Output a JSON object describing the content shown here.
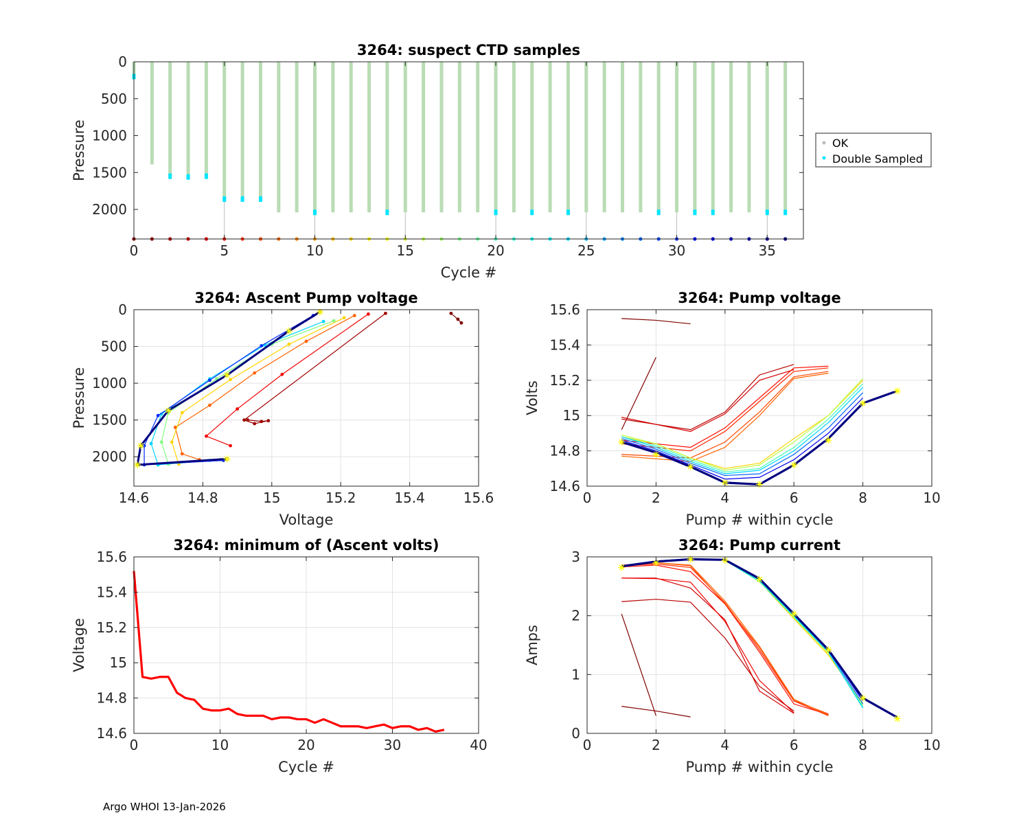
{
  "footer": "Argo WHOI 13-Jan-2026",
  "chart_data": [
    {
      "id": "ctd",
      "type": "scatter",
      "title": "3264: suspect CTD samples",
      "xlabel": "Cycle #",
      "ylabel": "Pressure",
      "xlim": [
        0,
        37
      ],
      "ylim": [
        2400,
        0
      ],
      "xticks": [
        0,
        5,
        10,
        15,
        20,
        25,
        30,
        35
      ],
      "yticks": [
        0,
        500,
        1000,
        1500,
        2000
      ],
      "legend": {
        "position": "right",
        "entries": [
          {
            "label": "OK",
            "color": "#bbbbbb"
          },
          {
            "label": "Double Sampled",
            "color": "#00e5ff"
          }
        ]
      },
      "ok_color": "#b9dcb4",
      "double_color": "#00e5ff",
      "cycles": [
        0,
        1,
        2,
        3,
        4,
        5,
        6,
        7,
        8,
        9,
        10,
        11,
        12,
        13,
        14,
        15,
        16,
        17,
        18,
        19,
        20,
        21,
        22,
        23,
        24,
        25,
        26,
        27,
        28,
        29,
        30,
        31,
        32,
        33,
        34,
        35,
        36
      ],
      "max_pressure": [
        200,
        1390,
        1550,
        1560,
        1550,
        1860,
        1860,
        1860,
        2040,
        2040,
        2040,
        2040,
        2040,
        2040,
        2040,
        2040,
        2040,
        2040,
        2040,
        2040,
        2040,
        2040,
        2040,
        2040,
        2040,
        2040,
        2040,
        2040,
        2040,
        2040,
        2040,
        2040,
        2040,
        2040,
        2040,
        2040,
        2040
      ],
      "double_sampled": [
        [
          0,
          200
        ],
        [
          2,
          1550
        ],
        [
          3,
          1560
        ],
        [
          4,
          1550
        ],
        [
          5,
          1860
        ],
        [
          6,
          1860
        ],
        [
          7,
          1860
        ],
        [
          10,
          2040
        ],
        [
          14,
          2040
        ],
        [
          20,
          2040
        ],
        [
          22,
          2040
        ],
        [
          24,
          2040
        ],
        [
          29,
          2040
        ],
        [
          31,
          2040
        ],
        [
          32,
          2040
        ],
        [
          35,
          2040
        ],
        [
          36,
          2040
        ]
      ]
    },
    {
      "id": "ascent",
      "type": "line",
      "title": "3264: Ascent Pump voltage",
      "xlabel": "Voltage",
      "ylabel": "Pressure",
      "xlim": [
        14.6,
        15.6
      ],
      "ylim": [
        2400,
        0
      ],
      "xticks": [
        14.6,
        14.8,
        15,
        15.2,
        15.4,
        15.6
      ],
      "yticks": [
        0,
        500,
        1000,
        1500,
        2000
      ],
      "series": [
        {
          "cycle": 0,
          "voltage": [
            15.52,
            15.54,
            15.55
          ],
          "pressure": [
            50,
            130,
            180
          ]
        },
        {
          "cycle": 1,
          "voltage": [
            14.93,
            14.97,
            14.99,
            14.95,
            14.92,
            15.33
          ],
          "pressure": [
            1500,
            1520,
            1510,
            1550,
            1500,
            50
          ]
        },
        {
          "cycle": 4,
          "voltage": [
            14.88,
            14.81,
            14.9,
            15.03,
            15.28
          ],
          "pressure": [
            1850,
            1720,
            1350,
            880,
            60
          ]
        },
        {
          "cycle": 8,
          "voltage": [
            14.79,
            14.74,
            14.72,
            14.82,
            14.95,
            15.1,
            15.24
          ],
          "pressure": [
            2040,
            1960,
            1600,
            1300,
            860,
            430,
            80
          ]
        },
        {
          "cycle": 12,
          "voltage": [
            14.73,
            14.71,
            14.74,
            14.88,
            15.05,
            15.21
          ],
          "pressure": [
            2100,
            1800,
            1400,
            950,
            470,
            110
          ]
        },
        {
          "cycle": 18,
          "voltage": [
            14.85,
            14.7,
            14.68,
            14.7,
            14.84,
            15.0,
            15.18
          ],
          "pressure": [
            2040,
            2100,
            1800,
            1400,
            940,
            470,
            150
          ]
        },
        {
          "cycle": 24,
          "voltage": [
            14.82,
            14.67,
            14.65,
            14.68,
            14.82,
            14.98,
            15.15
          ],
          "pressure": [
            2050,
            2110,
            1820,
            1420,
            940,
            480,
            160
          ]
        },
        {
          "cycle": 30,
          "voltage": [
            14.86,
            14.63,
            14.63,
            14.67,
            14.82,
            14.97,
            15.12
          ],
          "pressure": [
            2050,
            2110,
            1850,
            1440,
            960,
            490,
            80
          ]
        },
        {
          "cycle": 36,
          "voltage": [
            14.87,
            14.61,
            14.62,
            14.7,
            14.87,
            15.05,
            15.14
          ],
          "pressure": [
            2030,
            2110,
            1850,
            1370,
            890,
            290,
            30
          ]
        }
      ]
    },
    {
      "id": "pumpv",
      "type": "line",
      "title": "3264: Pump voltage",
      "xlabel": "Pump # within cycle",
      "ylabel": "Volts",
      "xlim": [
        0,
        10
      ],
      "ylim": [
        14.6,
        15.6
      ],
      "xticks": [
        0,
        2,
        4,
        6,
        8,
        10
      ],
      "yticks": [
        14.6,
        14.8,
        15,
        15.2,
        15.4,
        15.6
      ],
      "series": [
        {
          "cycle": 0,
          "x": [
            1,
            2,
            3
          ],
          "y": [
            15.55,
            15.54,
            15.52
          ]
        },
        {
          "cycle": 0,
          "x": [
            1,
            2
          ],
          "y": [
            14.92,
            15.33
          ]
        },
        {
          "cycle": 2,
          "x": [
            1,
            3,
            4,
            5,
            6
          ],
          "y": [
            14.98,
            14.92,
            15.02,
            15.23,
            15.29
          ]
        },
        {
          "cycle": 3,
          "x": [
            1,
            3,
            4,
            5,
            6
          ],
          "y": [
            14.99,
            14.91,
            15.01,
            15.2,
            15.26
          ]
        },
        {
          "cycle": 5,
          "x": [
            1,
            3,
            4,
            5,
            6,
            7
          ],
          "y": [
            14.86,
            14.82,
            14.93,
            15.1,
            15.27,
            15.28
          ]
        },
        {
          "cycle": 6,
          "x": [
            1,
            3,
            4,
            5,
            6,
            7
          ],
          "y": [
            14.84,
            14.8,
            14.91,
            15.08,
            15.25,
            15.27
          ]
        },
        {
          "cycle": 7,
          "x": [
            1,
            3,
            4,
            5,
            6,
            7
          ],
          "y": [
            14.78,
            14.76,
            14.85,
            15.02,
            15.22,
            15.25
          ]
        },
        {
          "cycle": 8,
          "x": [
            1,
            3,
            4,
            5,
            6,
            7
          ],
          "y": [
            14.77,
            14.74,
            14.82,
            15.0,
            15.21,
            15.24
          ]
        },
        {
          "cycle": 12,
          "x": [
            1,
            2,
            3,
            4,
            5,
            6,
            7,
            8
          ],
          "y": [
            14.88,
            14.84,
            14.76,
            14.7,
            14.73,
            14.87,
            15.0,
            15.2
          ]
        },
        {
          "cycle": 16,
          "x": [
            1,
            2,
            3,
            4,
            5,
            6,
            7,
            8
          ],
          "y": [
            14.89,
            14.84,
            14.76,
            14.69,
            14.72,
            14.85,
            15.0,
            15.21
          ]
        },
        {
          "cycle": 20,
          "x": [
            1,
            2,
            3,
            4,
            5,
            6,
            7,
            8
          ],
          "y": [
            14.88,
            14.83,
            14.75,
            14.68,
            14.7,
            14.82,
            14.98,
            15.18
          ]
        },
        {
          "cycle": 24,
          "x": [
            1,
            2,
            3,
            4,
            5,
            6,
            7,
            8
          ],
          "y": [
            14.88,
            14.82,
            14.74,
            14.67,
            14.69,
            14.8,
            14.96,
            15.16
          ]
        },
        {
          "cycle": 28,
          "x": [
            1,
            2,
            3,
            4,
            5,
            6,
            7,
            8
          ],
          "y": [
            14.87,
            14.81,
            14.73,
            14.66,
            14.67,
            14.78,
            14.93,
            15.13
          ]
        },
        {
          "cycle": 32,
          "x": [
            1,
            2,
            3,
            4,
            5,
            6,
            7,
            8
          ],
          "y": [
            14.86,
            14.8,
            14.72,
            14.64,
            14.65,
            14.75,
            14.9,
            15.1
          ]
        },
        {
          "cycle": 36,
          "x": [
            1,
            2,
            3,
            4,
            5,
            6,
            7,
            8,
            9
          ],
          "y": [
            14.85,
            14.79,
            14.71,
            14.62,
            14.61,
            14.72,
            14.87,
            15.07,
            15.14
          ]
        }
      ],
      "markers": {
        "x": [
          1,
          2,
          3,
          4,
          5,
          6,
          7,
          8,
          9
        ],
        "y": [
          14.85,
          14.78,
          14.71,
          14.62,
          14.61,
          14.72,
          14.86,
          15.07,
          15.14
        ]
      }
    },
    {
      "id": "minv",
      "type": "line",
      "title": "3264: minimum of (Ascent volts)",
      "xlabel": "Cycle #",
      "ylabel": "Voltage",
      "xlim": [
        0,
        40
      ],
      "ylim": [
        14.6,
        15.6
      ],
      "xticks": [
        0,
        10,
        20,
        30,
        40
      ],
      "yticks": [
        14.6,
        14.8,
        15,
        15.2,
        15.4,
        15.6
      ],
      "color": "#ff0000",
      "x": [
        0,
        1,
        2,
        3,
        4,
        5,
        6,
        7,
        8,
        9,
        10,
        11,
        12,
        13,
        14,
        15,
        16,
        17,
        18,
        19,
        20,
        21,
        22,
        23,
        24,
        25,
        26,
        27,
        28,
        29,
        30,
        31,
        32,
        33,
        34,
        35,
        36
      ],
      "y": [
        15.52,
        14.92,
        14.91,
        14.92,
        14.92,
        14.83,
        14.8,
        14.79,
        14.74,
        14.73,
        14.73,
        14.74,
        14.71,
        14.7,
        14.7,
        14.7,
        14.68,
        14.69,
        14.69,
        14.68,
        14.68,
        14.66,
        14.68,
        14.66,
        14.64,
        14.64,
        14.64,
        14.63,
        14.64,
        14.65,
        14.63,
        14.64,
        14.64,
        14.62,
        14.63,
        14.61,
        14.62
      ]
    },
    {
      "id": "current",
      "type": "line",
      "title": "3264: Pump current",
      "xlabel": "Pump # within cycle",
      "ylabel": "Amps",
      "xlim": [
        0,
        10
      ],
      "ylim": [
        0,
        3
      ],
      "xticks": [
        0,
        2,
        4,
        6,
        8,
        10
      ],
      "yticks": [
        0,
        1,
        2,
        3
      ],
      "series": [
        {
          "cycle": 0,
          "x": [
            1,
            2,
            3
          ],
          "y": [
            0.46,
            0.38,
            0.28
          ]
        },
        {
          "cycle": 0,
          "x": [
            1,
            2
          ],
          "y": [
            2.03,
            0.3
          ]
        },
        {
          "cycle": 2,
          "x": [
            1,
            2,
            3,
            4,
            5,
            6
          ],
          "y": [
            2.24,
            2.28,
            2.23,
            1.62,
            0.8,
            0.38
          ]
        },
        {
          "cycle": 3,
          "x": [
            1,
            2,
            3,
            4,
            5,
            6
          ],
          "y": [
            2.64,
            2.64,
            2.47,
            1.93,
            0.72,
            0.34
          ]
        },
        {
          "cycle": 4,
          "x": [
            1,
            2,
            3,
            4,
            5,
            6
          ],
          "y": [
            2.64,
            2.63,
            2.57,
            1.9,
            0.9,
            0.35
          ]
        },
        {
          "cycle": 5,
          "x": [
            1,
            2,
            3,
            4,
            5,
            6,
            7
          ],
          "y": [
            2.83,
            2.86,
            2.75,
            2.2,
            1.38,
            0.5,
            0.32
          ]
        },
        {
          "cycle": 6,
          "x": [
            1,
            2,
            3,
            4,
            5,
            6,
            7
          ],
          "y": [
            2.85,
            2.88,
            2.82,
            2.22,
            1.42,
            0.55,
            0.3
          ]
        },
        {
          "cycle": 7,
          "x": [
            1,
            2,
            3,
            4,
            5,
            6,
            7
          ],
          "y": [
            2.84,
            2.9,
            2.85,
            2.2,
            1.46,
            0.56,
            0.33
          ]
        },
        {
          "cycle": 8,
          "x": [
            1,
            2,
            3,
            4,
            5,
            6,
            7
          ],
          "y": [
            2.86,
            2.9,
            2.86,
            2.25,
            1.48,
            0.58,
            0.31
          ]
        },
        {
          "cycle": 12,
          "x": [
            1,
            2,
            3,
            4,
            5,
            6,
            7,
            8
          ],
          "y": [
            2.84,
            2.91,
            2.97,
            2.95,
            2.58,
            1.95,
            1.33,
            0.5
          ]
        },
        {
          "cycle": 16,
          "x": [
            1,
            2,
            3,
            4,
            5,
            6,
            7,
            8
          ],
          "y": [
            2.84,
            2.92,
            2.97,
            2.94,
            2.6,
            1.97,
            1.36,
            0.48
          ]
        },
        {
          "cycle": 20,
          "x": [
            1,
            2,
            3,
            4,
            5,
            6,
            7,
            8
          ],
          "y": [
            2.85,
            2.92,
            2.97,
            2.94,
            2.58,
            1.98,
            1.38,
            0.45
          ]
        },
        {
          "cycle": 24,
          "x": [
            1,
            2,
            3,
            4,
            5,
            6,
            7,
            8
          ],
          "y": [
            2.85,
            2.93,
            2.97,
            2.94,
            2.6,
            2.0,
            1.38,
            0.43
          ]
        },
        {
          "cycle": 28,
          "x": [
            1,
            2,
            3,
            4,
            5,
            6,
            7,
            8
          ],
          "y": [
            2.85,
            2.93,
            2.97,
            2.95,
            2.62,
            2.02,
            1.4,
            0.5
          ]
        },
        {
          "cycle": 32,
          "x": [
            1,
            2,
            3,
            4,
            5,
            6,
            7,
            8
          ],
          "y": [
            2.84,
            2.92,
            2.96,
            2.95,
            2.63,
            2.04,
            1.42,
            0.55
          ]
        },
        {
          "cycle": 36,
          "x": [
            1,
            2,
            3,
            4,
            5,
            6,
            7,
            8,
            9
          ],
          "y": [
            2.84,
            2.92,
            2.96,
            2.95,
            2.63,
            2.03,
            1.42,
            0.6,
            0.27
          ]
        }
      ],
      "markers": {
        "x": [
          1,
          2,
          3,
          4,
          5,
          6,
          7,
          8,
          9
        ],
        "y": [
          2.82,
          2.9,
          2.96,
          2.94,
          2.62,
          2.03,
          1.42,
          0.6,
          0.25
        ]
      }
    }
  ]
}
